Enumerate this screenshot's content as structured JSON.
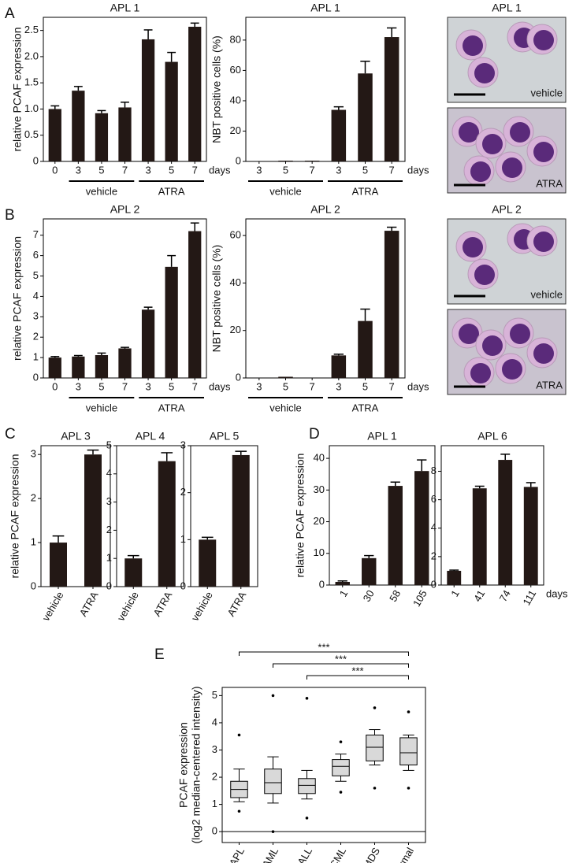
{
  "panel_labels": [
    "A",
    "B",
    "C",
    "D",
    "E"
  ],
  "micrographs": [
    {
      "title": "APL 1",
      "labels": [
        "vehicle",
        "ATRA"
      ]
    },
    {
      "title": "APL 2",
      "labels": [
        "vehicle",
        "ATRA"
      ]
    }
  ],
  "chart_data": [
    {
      "type": "bar",
      "title": "APL 1",
      "ylabel": "relative PCAF expression",
      "categories": [
        "0",
        "3",
        "5",
        "7",
        "3",
        "5",
        "7"
      ],
      "values": [
        1.0,
        1.35,
        0.92,
        1.03,
        2.33,
        1.9,
        2.57
      ],
      "errors": [
        0.06,
        0.08,
        0.05,
        0.1,
        0.18,
        0.18,
        0.07
      ],
      "groups": [
        "vehicle",
        "ATRA"
      ],
      "x_unit": "days",
      "ylim": [
        0,
        2.75
      ],
      "yticks": [
        0,
        {
          "value": 0.5,
          "label": "0.5"
        },
        {
          "value": 1,
          "label": "1.0"
        },
        {
          "value": 1.5,
          "label": "1.5"
        },
        {
          "value": 2,
          "label": "2.0"
        },
        {
          "value": 2.5,
          "label": "2.5"
        }
      ],
      "color": "#231815"
    },
    {
      "type": "bar",
      "title": "APL 1",
      "ylabel": "NBT positive cells (%)",
      "categories": [
        "3",
        "5",
        "7",
        "3",
        "5",
        "7"
      ],
      "values": [
        0,
        0.5,
        0.5,
        34,
        58,
        82
      ],
      "errors": [
        0,
        0,
        0,
        2,
        8,
        6
      ],
      "groups": [
        "vehicle",
        "ATRA"
      ],
      "x_unit": "days",
      "ylim": [
        0,
        95
      ],
      "yticks": [
        0,
        20,
        40,
        60,
        80
      ],
      "color": "#231815"
    },
    {
      "type": "bar",
      "title": "APL 2",
      "ylabel": "relative PCAF expression",
      "categories": [
        "0",
        "3",
        "5",
        "7",
        "3",
        "5",
        "7"
      ],
      "values": [
        1.0,
        1.05,
        1.12,
        1.45,
        3.35,
        5.45,
        7.2
      ],
      "errors": [
        0.05,
        0.05,
        0.1,
        0.05,
        0.12,
        0.55,
        0.4
      ],
      "groups": [
        "vehicle",
        "ATRA"
      ],
      "x_unit": "days",
      "ylim": [
        0,
        7.8
      ],
      "yticks": [
        0,
        1,
        2,
        3,
        4,
        5,
        6,
        7
      ],
      "color": "#231815"
    },
    {
      "type": "bar",
      "title": "APL 2",
      "ylabel": "NBT positive cells (%)",
      "categories": [
        "3",
        "5",
        "7",
        "3",
        "5",
        "7"
      ],
      "values": [
        0,
        0.5,
        0,
        9.5,
        24,
        62
      ],
      "errors": [
        0,
        0,
        0,
        0.5,
        5,
        1.5
      ],
      "groups": [
        "vehicle",
        "ATRA"
      ],
      "x_unit": "days",
      "ylim": [
        0,
        67
      ],
      "yticks": [
        0,
        20,
        40,
        60
      ],
      "color": "#231815"
    },
    {
      "type": "bar",
      "title": "APL 3",
      "ylabel": "relative PCAF expression",
      "categories": [
        "vehicle",
        "ATRA"
      ],
      "values": [
        1.0,
        3.0
      ],
      "errors": [
        0.15,
        0.1
      ],
      "ylim": [
        0,
        3.2
      ],
      "yticks": [
        0,
        1,
        2,
        3
      ],
      "color": "#231815"
    },
    {
      "type": "bar",
      "title": "APL 4",
      "categories": [
        "vehicle",
        "ATRA"
      ],
      "values": [
        1.0,
        4.45
      ],
      "errors": [
        0.1,
        0.3
      ],
      "ylim": [
        0,
        5
      ],
      "yticks": [
        0,
        1,
        2,
        3,
        4,
        5
      ],
      "color": "#231815"
    },
    {
      "type": "bar",
      "title": "APL 5",
      "categories": [
        "vehicle",
        "ATRA"
      ],
      "values": [
        1.0,
        2.8
      ],
      "errors": [
        0.05,
        0.08
      ],
      "ylim": [
        0,
        3
      ],
      "yticks": [
        0,
        1,
        2,
        3
      ],
      "color": "#231815"
    },
    {
      "type": "bar",
      "title": "APL 1",
      "ylabel": "relative PCAF expression",
      "categories": [
        "1",
        "30",
        "58",
        "105"
      ],
      "values": [
        1,
        8.5,
        31.3,
        36
      ],
      "errors": [
        0.3,
        0.8,
        1.2,
        3.5
      ],
      "ylim": [
        0,
        44
      ],
      "yticks": [
        0,
        10,
        20,
        30,
        40
      ],
      "color": "#231815"
    },
    {
      "type": "bar",
      "title": "APL 6",
      "categories": [
        "1",
        "41",
        "74",
        "111"
      ],
      "values": [
        1,
        6.8,
        8.8,
        6.9
      ],
      "errors": [
        0.05,
        0.15,
        0.4,
        0.3
      ],
      "x_unit": "days",
      "ylim": [
        0,
        9.8
      ],
      "yticks": [
        0,
        2,
        4,
        6,
        8
      ],
      "color": "#231815"
    },
    {
      "type": "box",
      "ylabel": [
        "PCAF expression",
        "(log2 median-centered intensity)"
      ],
      "categories": [
        "APL",
        "AML",
        "ALL",
        "CML",
        "MDS",
        "Normal"
      ],
      "series": [
        {
          "whislo": 1.1,
          "q1": 1.25,
          "med": 1.55,
          "q3": 1.85,
          "whishi": 2.3,
          "fliers": [
            3.55,
            0.75
          ]
        },
        {
          "whislo": 1.05,
          "q1": 1.4,
          "med": 1.8,
          "q3": 2.3,
          "whishi": 2.75,
          "fliers": [
            5.0,
            0.0
          ]
        },
        {
          "whislo": 1.2,
          "q1": 1.4,
          "med": 1.7,
          "q3": 1.95,
          "whishi": 2.25,
          "fliers": [
            4.9,
            0.5
          ]
        },
        {
          "whislo": 1.85,
          "q1": 2.05,
          "med": 2.4,
          "q3": 2.65,
          "whishi": 2.85,
          "fliers": [
            3.3,
            1.45
          ]
        },
        {
          "whislo": 2.45,
          "q1": 2.6,
          "med": 3.1,
          "q3": 3.55,
          "whishi": 3.75,
          "fliers": [
            4.55,
            1.6
          ]
        },
        {
          "whislo": 2.25,
          "q1": 2.45,
          "med": 2.9,
          "q3": 3.45,
          "whishi": 3.55,
          "fliers": [
            4.4,
            1.6
          ]
        }
      ],
      "comparisons": [
        {
          "from": "APL",
          "to": "Normal",
          "label": "***"
        },
        {
          "from": "AML",
          "to": "Normal",
          "label": "***"
        },
        {
          "from": "ALL",
          "to": "Normal",
          "label": "***"
        }
      ],
      "color": "#d9d9d9",
      "ylim": [
        -0.4,
        5.3
      ],
      "yticks": [
        0,
        1,
        2,
        3,
        4,
        5
      ]
    }
  ]
}
